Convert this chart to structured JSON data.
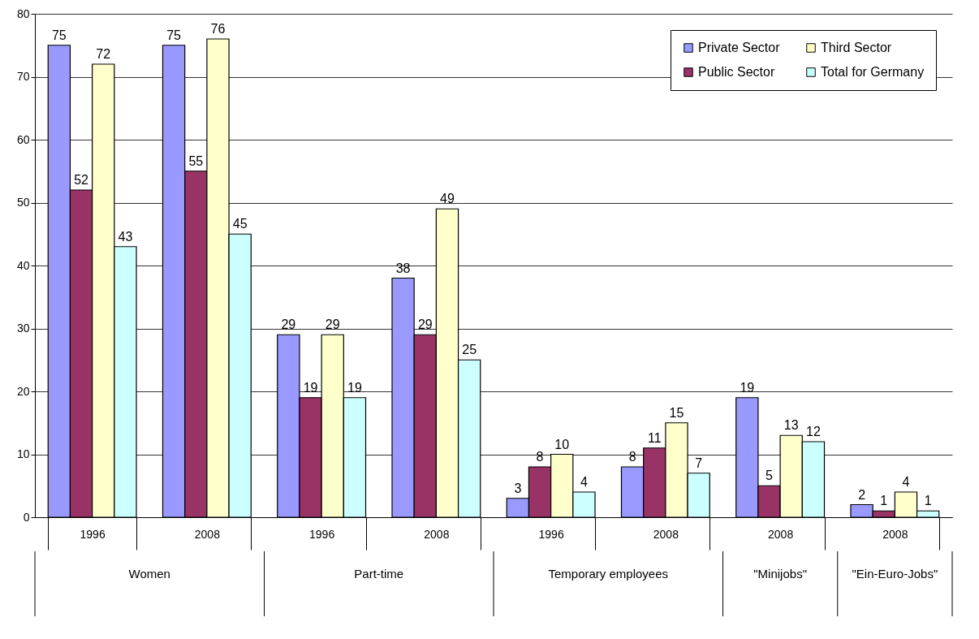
{
  "chart_data": {
    "type": "bar",
    "categories": [
      "1996",
      "2008",
      "1996",
      "2008",
      "1996",
      "2008",
      "2008",
      "2008"
    ],
    "series": [
      {
        "name": "Private Sector",
        "color": "#9999ff",
        "values": [
          75,
          75,
          29,
          38,
          3,
          8,
          19,
          2
        ]
      },
      {
        "name": "Public Sector",
        "color": "#993366",
        "values": [
          52,
          55,
          19,
          29,
          8,
          11,
          5,
          1
        ]
      },
      {
        "name": "Third Sector",
        "color": "#ffffcc",
        "values": [
          72,
          76,
          29,
          49,
          10,
          15,
          13,
          4
        ]
      },
      {
        "name": "Total for Germany",
        "color": "#ccffff",
        "values": [
          43,
          45,
          19,
          25,
          4,
          7,
          12,
          1
        ]
      }
    ],
    "annotations": [
      "Women",
      "Part-time",
      "Temporary employees",
      "\"Minijobs\"",
      "\"Ein-Euro-Jobs\""
    ],
    "ylim": [
      0,
      80
    ],
    "yticks": [
      0,
      10,
      20,
      30,
      40,
      50,
      60,
      70,
      80
    ],
    "grid": "y",
    "legend": "top right",
    "data_labels": true
  }
}
